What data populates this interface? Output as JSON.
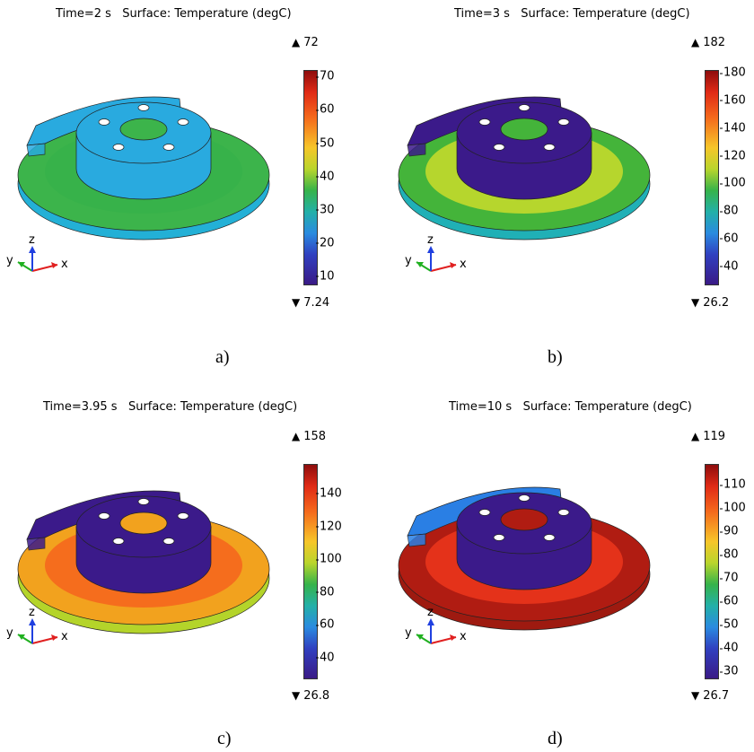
{
  "panels": [
    {
      "caption": "a)",
      "time": "Time=2 s",
      "quantity": "Surface: Temperature (degC)",
      "max": "72",
      "min": "7.24",
      "ticks": [
        "70",
        "60",
        "50",
        "40",
        "30",
        "20",
        "10"
      ],
      "tick_values": [
        70,
        60,
        50,
        40,
        30,
        20,
        10
      ],
      "range": [
        7.24,
        72
      ],
      "colors": {
        "outer_ring": "#3cb44b",
        "mid_ring": "#37b24a",
        "hub": "#29aadf",
        "caliper": "#29aadf",
        "disc_side": "#23b0d6"
      }
    },
    {
      "caption": "b)",
      "time": "Time=3 s",
      "quantity": "Surface: Temperature (degC)",
      "max": "182",
      "min": "26.2",
      "ticks": [
        "180",
        "160",
        "140",
        "120",
        "100",
        "80",
        "60",
        "40"
      ],
      "tick_values": [
        180,
        160,
        140,
        120,
        100,
        80,
        60,
        40
      ],
      "range": [
        26.2,
        182
      ],
      "colors": {
        "outer_ring": "#44b43a",
        "mid_ring": "#b6d62d",
        "hub": "#3b1a8a",
        "caliper": "#3b1a8a",
        "disc_side": "#20b0b6"
      }
    },
    {
      "caption": "c)",
      "time": "Time=3.95 s",
      "quantity": "Surface: Temperature (degC)",
      "max": "158",
      "min": "26.8",
      "ticks": [
        "140",
        "120",
        "100",
        "80",
        "60",
        "40"
      ],
      "tick_values": [
        140,
        120,
        100,
        80,
        60,
        40
      ],
      "range": [
        26.8,
        158
      ],
      "colors": {
        "outer_ring": "#f2a21e",
        "mid_ring": "#f56d1d",
        "hub": "#3b1a8a",
        "caliper": "#3b1a8a",
        "disc_side": "#b4d42a"
      }
    },
    {
      "caption": "d)",
      "time": "Time=10 s",
      "quantity": "Surface: Temperature (degC)",
      "max": "119",
      "min": "26.7",
      "ticks": [
        "110",
        "100",
        "90",
        "80",
        "70",
        "60",
        "50",
        "40",
        "30"
      ],
      "tick_values": [
        110,
        100,
        90,
        80,
        70,
        60,
        50,
        40,
        30
      ],
      "range": [
        26.7,
        119
      ],
      "colors": {
        "outer_ring": "#b01c12",
        "mid_ring": "#e4321a",
        "hub": "#3b1a8a",
        "caliper": "#2a7fe4",
        "disc_side": "#9e1a10"
      }
    }
  ],
  "axis_labels": {
    "x": "x",
    "y": "y",
    "z": "z"
  },
  "colormap": "rainbow"
}
